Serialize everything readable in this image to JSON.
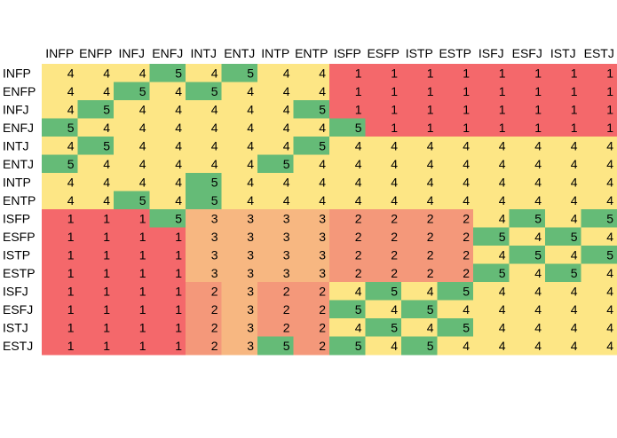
{
  "chart_data": {
    "type": "heatmap",
    "title": "",
    "xlabel": "",
    "ylabel": "",
    "columns": [
      "INFP",
      "ENFP",
      "INFJ",
      "ENFJ",
      "INTJ",
      "ENTJ",
      "INTP",
      "ENTP",
      "ISFP",
      "ESFP",
      "ISTP",
      "ESTP",
      "ISFJ",
      "ESFJ",
      "ISTJ",
      "ESTJ"
    ],
    "rows": [
      "INFP",
      "ENFP",
      "INFJ",
      "ENFJ",
      "INTJ",
      "ENTJ",
      "INTP",
      "ENTP",
      "ISFP",
      "ESFP",
      "ISTP",
      "ESTP",
      "ISFJ",
      "ESFJ",
      "ISTJ",
      "ESTJ"
    ],
    "values": [
      [
        4,
        4,
        4,
        5,
        4,
        5,
        4,
        4,
        1,
        1,
        1,
        1,
        1,
        1,
        1,
        1
      ],
      [
        4,
        4,
        5,
        4,
        5,
        4,
        4,
        4,
        1,
        1,
        1,
        1,
        1,
        1,
        1,
        1
      ],
      [
        4,
        5,
        4,
        4,
        4,
        4,
        4,
        5,
        1,
        1,
        1,
        1,
        1,
        1,
        1,
        1
      ],
      [
        5,
        4,
        4,
        4,
        4,
        4,
        4,
        4,
        5,
        1,
        1,
        1,
        1,
        1,
        1,
        1
      ],
      [
        4,
        5,
        4,
        4,
        4,
        4,
        4,
        5,
        4,
        4,
        4,
        4,
        4,
        4,
        4,
        4
      ],
      [
        5,
        4,
        4,
        4,
        4,
        4,
        5,
        4,
        4,
        4,
        4,
        4,
        4,
        4,
        4,
        4
      ],
      [
        4,
        4,
        4,
        4,
        5,
        4,
        4,
        4,
        4,
        4,
        4,
        4,
        4,
        4,
        4,
        4
      ],
      [
        4,
        4,
        5,
        4,
        5,
        4,
        4,
        4,
        4,
        4,
        4,
        4,
        4,
        4,
        4,
        4
      ],
      [
        1,
        1,
        1,
        5,
        3,
        3,
        3,
        3,
        2,
        2,
        2,
        2,
        4,
        5,
        4,
        5
      ],
      [
        1,
        1,
        1,
        1,
        3,
        3,
        3,
        3,
        2,
        2,
        2,
        2,
        5,
        4,
        5,
        4
      ],
      [
        1,
        1,
        1,
        1,
        3,
        3,
        3,
        3,
        2,
        2,
        2,
        2,
        4,
        5,
        4,
        5
      ],
      [
        1,
        1,
        1,
        1,
        3,
        3,
        3,
        3,
        2,
        2,
        2,
        2,
        5,
        4,
        5,
        4
      ],
      [
        1,
        1,
        1,
        1,
        2,
        3,
        2,
        2,
        4,
        5,
        4,
        5,
        4,
        4,
        4,
        4
      ],
      [
        1,
        1,
        1,
        1,
        2,
        3,
        2,
        2,
        5,
        4,
        5,
        4,
        4,
        4,
        4,
        4
      ],
      [
        1,
        1,
        1,
        1,
        2,
        3,
        2,
        2,
        4,
        5,
        4,
        5,
        4,
        4,
        4,
        4
      ],
      [
        1,
        1,
        1,
        1,
        2,
        3,
        5,
        2,
        5,
        4,
        5,
        4,
        4,
        4,
        4,
        4
      ]
    ],
    "color_scale": {
      "1": "#f4686b",
      "2": "#f4987a",
      "3": "#f7b781",
      "4": "#fde685",
      "5": "#65bb77"
    },
    "legend": "none",
    "grid": false
  }
}
